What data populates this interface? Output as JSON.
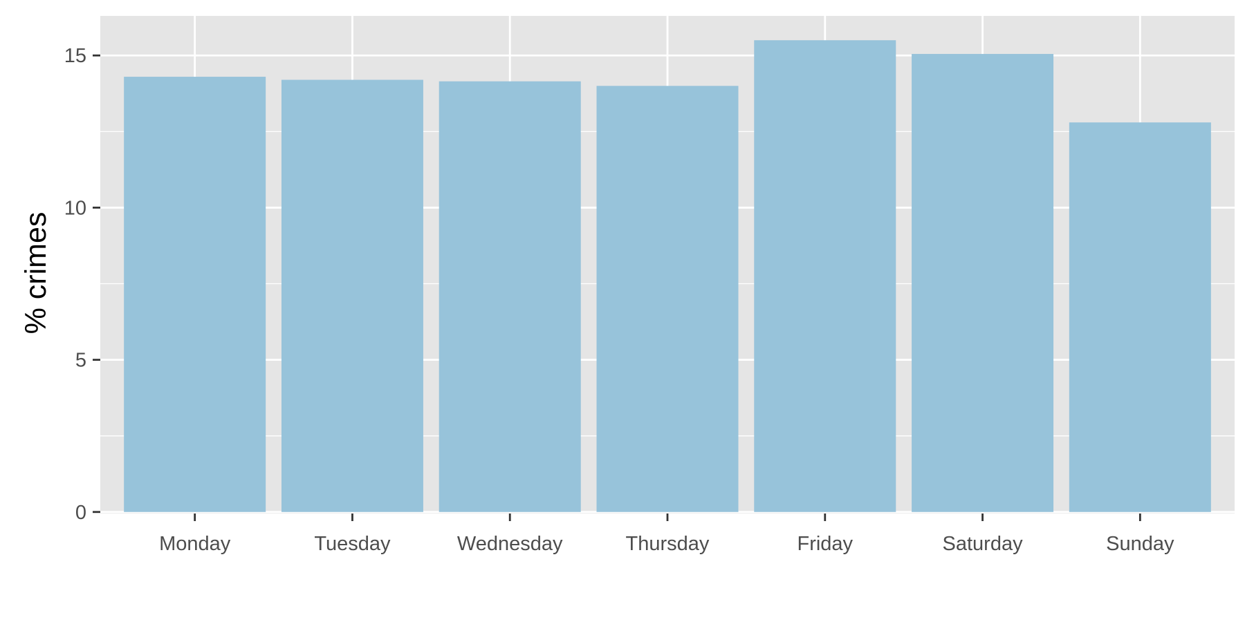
{
  "chart_data": {
    "type": "bar",
    "title": "",
    "xlabel": "",
    "ylabel": "% crimes",
    "categories": [
      "Monday",
      "Tuesday",
      "Wednesday",
      "Thursday",
      "Friday",
      "Saturday",
      "Sunday"
    ],
    "values": [
      14.3,
      14.2,
      14.15,
      14.0,
      15.5,
      15.05,
      12.8
    ],
    "ylim": [
      -0.05,
      16.3
    ],
    "yticks": [
      0,
      5,
      10,
      15
    ],
    "ytick_labels": [
      "0",
      "5",
      "10",
      "15"
    ],
    "grid": true,
    "legend": "none",
    "colors": {
      "bar": "#97c3da",
      "panel": "#e5e5e5",
      "grid": "#ffffff",
      "tick": "#333333"
    }
  }
}
